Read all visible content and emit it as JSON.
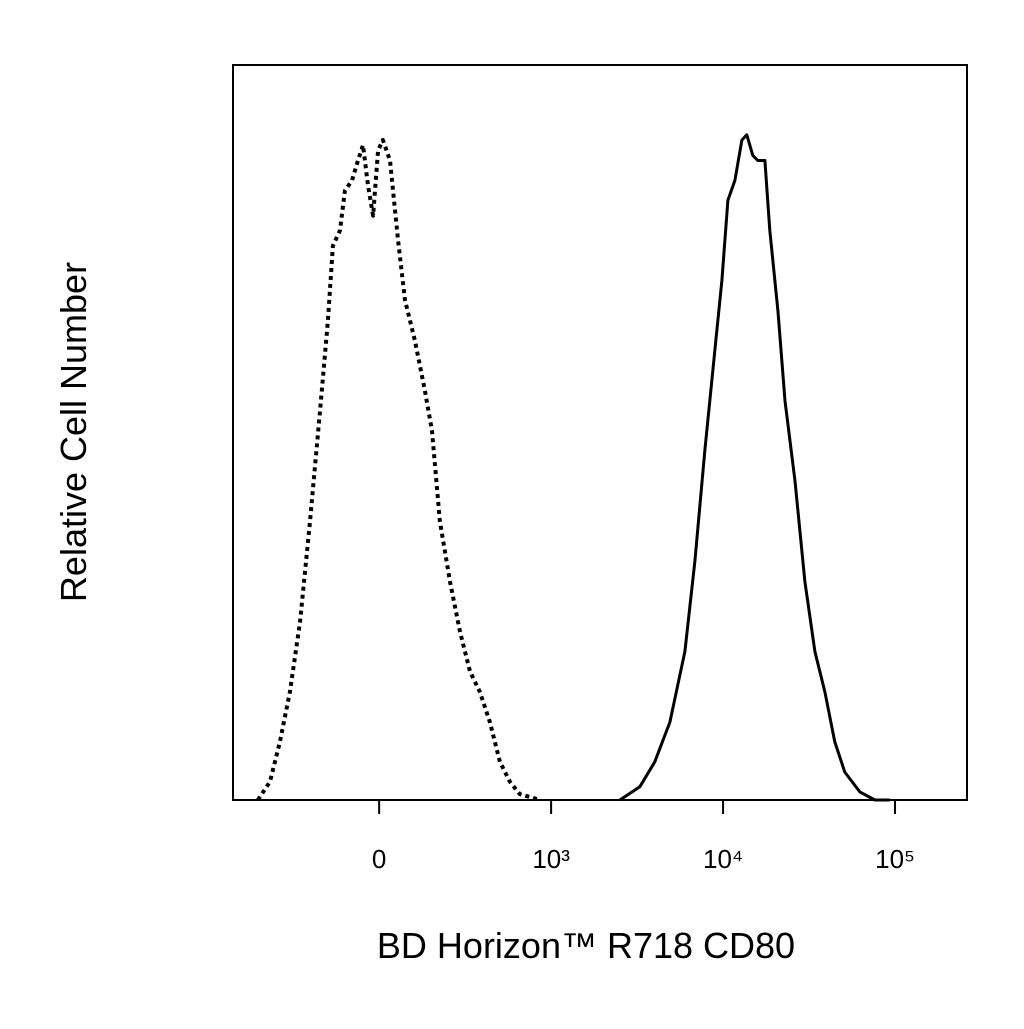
{
  "chart_data": {
    "type": "line",
    "x_label": "BD Horizon™ R718 CD80",
    "y_label": "Relative Cell Number",
    "xscale": "biexponential",
    "xlim": [
      -850,
      262144
    ],
    "xticks": [
      0,
      {
        "value": 1000,
        "label": "10³"
      },
      {
        "value": 10000,
        "label": "10⁴"
      },
      {
        "value": 100000,
        "label": "10⁵"
      }
    ],
    "ylim": [
      0,
      100
    ],
    "series": [
      {
        "color": "#000000",
        "style": "dotted",
        "x": [
          -705,
          -635,
          -577,
          -519,
          -460,
          -402,
          -344,
          -298,
          -269,
          -228,
          -199,
          -158,
          -123,
          -94,
          -65,
          -35,
          -6,
          22,
          63,
          110,
          150,
          208,
          266,
          307,
          353,
          412,
          470,
          528,
          586,
          644,
          702,
          760,
          818,
          935
        ],
        "values": [
          0,
          2.5,
          7.9,
          14.7,
          24.3,
          37.9,
          52.9,
          65.2,
          75.4,
          77.5,
          82.9,
          84.3,
          87,
          89.1,
          83.6,
          79.5,
          88.4,
          89.8,
          87,
          76.1,
          68,
          62.5,
          55.7,
          50.2,
          37.9,
          29.7,
          22.9,
          17.5,
          14.7,
          10.6,
          5.2,
          2.5,
          0.8,
          0
        ]
      },
      {
        "color": "#000000",
        "style": "solid",
        "x": [
          2512,
          3281,
          4009,
          4909,
          5998,
          6855,
          7834,
          8954,
          9840,
          10666,
          11722,
          12860,
          13743,
          14890,
          15917,
          17500,
          18707,
          20844,
          22909,
          26182,
          29922,
          34198,
          39083,
          44668,
          51050,
          62373,
          76384,
          93325
        ],
        "values": [
          0,
          1.8,
          5.2,
          10.6,
          20.2,
          32.5,
          47.5,
          61.1,
          70.7,
          81.6,
          84.3,
          89.8,
          90.5,
          87.7,
          87,
          87,
          77.5,
          66.6,
          54.3,
          43.4,
          29.7,
          20.2,
          14.7,
          7.9,
          3.8,
          1.1,
          0,
          0
        ]
      }
    ]
  }
}
